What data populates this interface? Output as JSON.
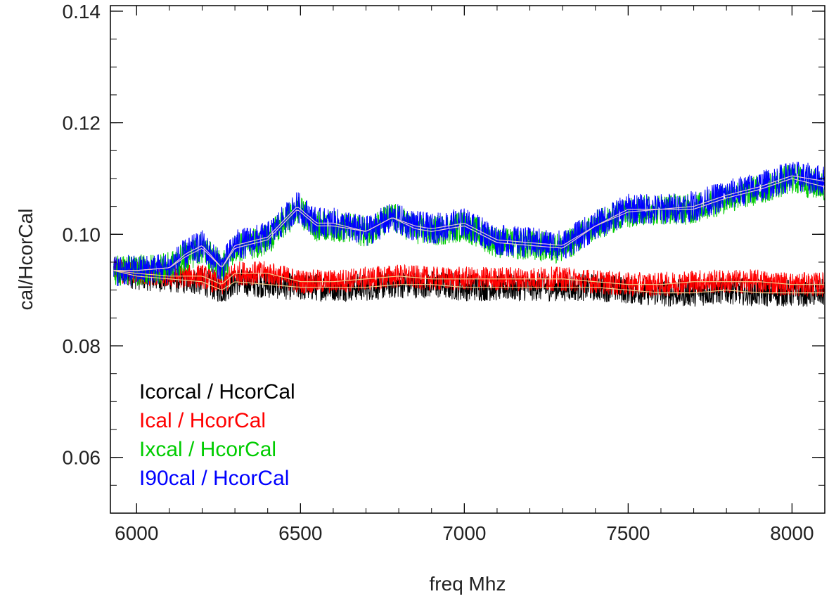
{
  "chart_data": {
    "type": "line",
    "title": "",
    "xlabel": "freq Mhz",
    "ylabel": "cal/HcorCal",
    "xlim": [
      5920,
      8100
    ],
    "ylim": [
      0.05,
      0.141
    ],
    "x_ticks": [
      6000,
      6500,
      7000,
      7500,
      8000
    ],
    "y_ticks": [
      0.06,
      0.08,
      0.1,
      0.12,
      0.14
    ],
    "x_tick_labels": [
      "6000",
      "6500",
      "7000",
      "7500",
      "8000"
    ],
    "y_tick_labels": [
      "0.06",
      "0.08",
      "0.10",
      "0.12",
      "0.14"
    ],
    "grid": false,
    "legend_position": "bottom-left",
    "series": [
      {
        "name": "Icorcal / HcorCal",
        "color": "#000000",
        "x": [
          5930,
          6000,
          6100,
          6200,
          6260,
          6300,
          6400,
          6500,
          6600,
          6700,
          6800,
          6900,
          7000,
          7100,
          7200,
          7300,
          7400,
          7500,
          7600,
          7700,
          7800,
          7900,
          8000,
          8100
        ],
        "y": [
          0.0935,
          0.0925,
          0.092,
          0.0915,
          0.09,
          0.0915,
          0.091,
          0.0905,
          0.0905,
          0.0905,
          0.091,
          0.091,
          0.0905,
          0.0905,
          0.0905,
          0.0905,
          0.0905,
          0.09,
          0.0895,
          0.0895,
          0.09,
          0.0895,
          0.0895,
          0.0895
        ],
        "noise": 0.0025
      },
      {
        "name": "Ical / HcorCal",
        "color": "#ff0000",
        "x": [
          5930,
          6000,
          6100,
          6200,
          6260,
          6300,
          6400,
          6500,
          6600,
          6700,
          6800,
          6900,
          7000,
          7100,
          7200,
          7300,
          7400,
          7500,
          7600,
          7700,
          7800,
          7900,
          8000,
          8100
        ],
        "y": [
          0.0935,
          0.093,
          0.0925,
          0.0925,
          0.091,
          0.093,
          0.093,
          0.0915,
          0.0915,
          0.092,
          0.0925,
          0.092,
          0.092,
          0.092,
          0.092,
          0.092,
          0.0915,
          0.091,
          0.091,
          0.0915,
          0.0915,
          0.0915,
          0.091,
          0.091
        ],
        "noise": 0.0022
      },
      {
        "name": "Ixcal / HcorCal",
        "color": "#00cc00",
        "x": [
          5930,
          6000,
          6100,
          6150,
          6200,
          6260,
          6300,
          6400,
          6490,
          6550,
          6600,
          6700,
          6780,
          6850,
          6900,
          7000,
          7100,
          7200,
          7300,
          7400,
          7500,
          7600,
          7700,
          7800,
          7900,
          8000,
          8100
        ],
        "y": [
          0.0935,
          0.0935,
          0.094,
          0.096,
          0.0975,
          0.094,
          0.0975,
          0.099,
          0.1045,
          0.1015,
          0.1015,
          0.1005,
          0.103,
          0.101,
          0.1005,
          0.1015,
          0.0985,
          0.098,
          0.0975,
          0.1015,
          0.104,
          0.1045,
          0.1045,
          0.1065,
          0.108,
          0.11,
          0.1085
        ],
        "noise": 0.0028
      },
      {
        "name": "I90cal / HcorCal",
        "color": "#0000ff",
        "x": [
          5930,
          6000,
          6100,
          6150,
          6200,
          6260,
          6300,
          6400,
          6490,
          6550,
          6600,
          6700,
          6780,
          6850,
          6900,
          7000,
          7100,
          7200,
          7300,
          7400,
          7500,
          7600,
          7700,
          7800,
          7900,
          8000,
          8100
        ],
        "y": [
          0.0935,
          0.0935,
          0.094,
          0.0965,
          0.098,
          0.094,
          0.098,
          0.0995,
          0.105,
          0.102,
          0.102,
          0.1005,
          0.103,
          0.1015,
          0.101,
          0.102,
          0.099,
          0.0985,
          0.098,
          0.1015,
          0.1045,
          0.1045,
          0.105,
          0.107,
          0.1085,
          0.1105,
          0.1095
        ],
        "noise": 0.0028
      }
    ]
  }
}
